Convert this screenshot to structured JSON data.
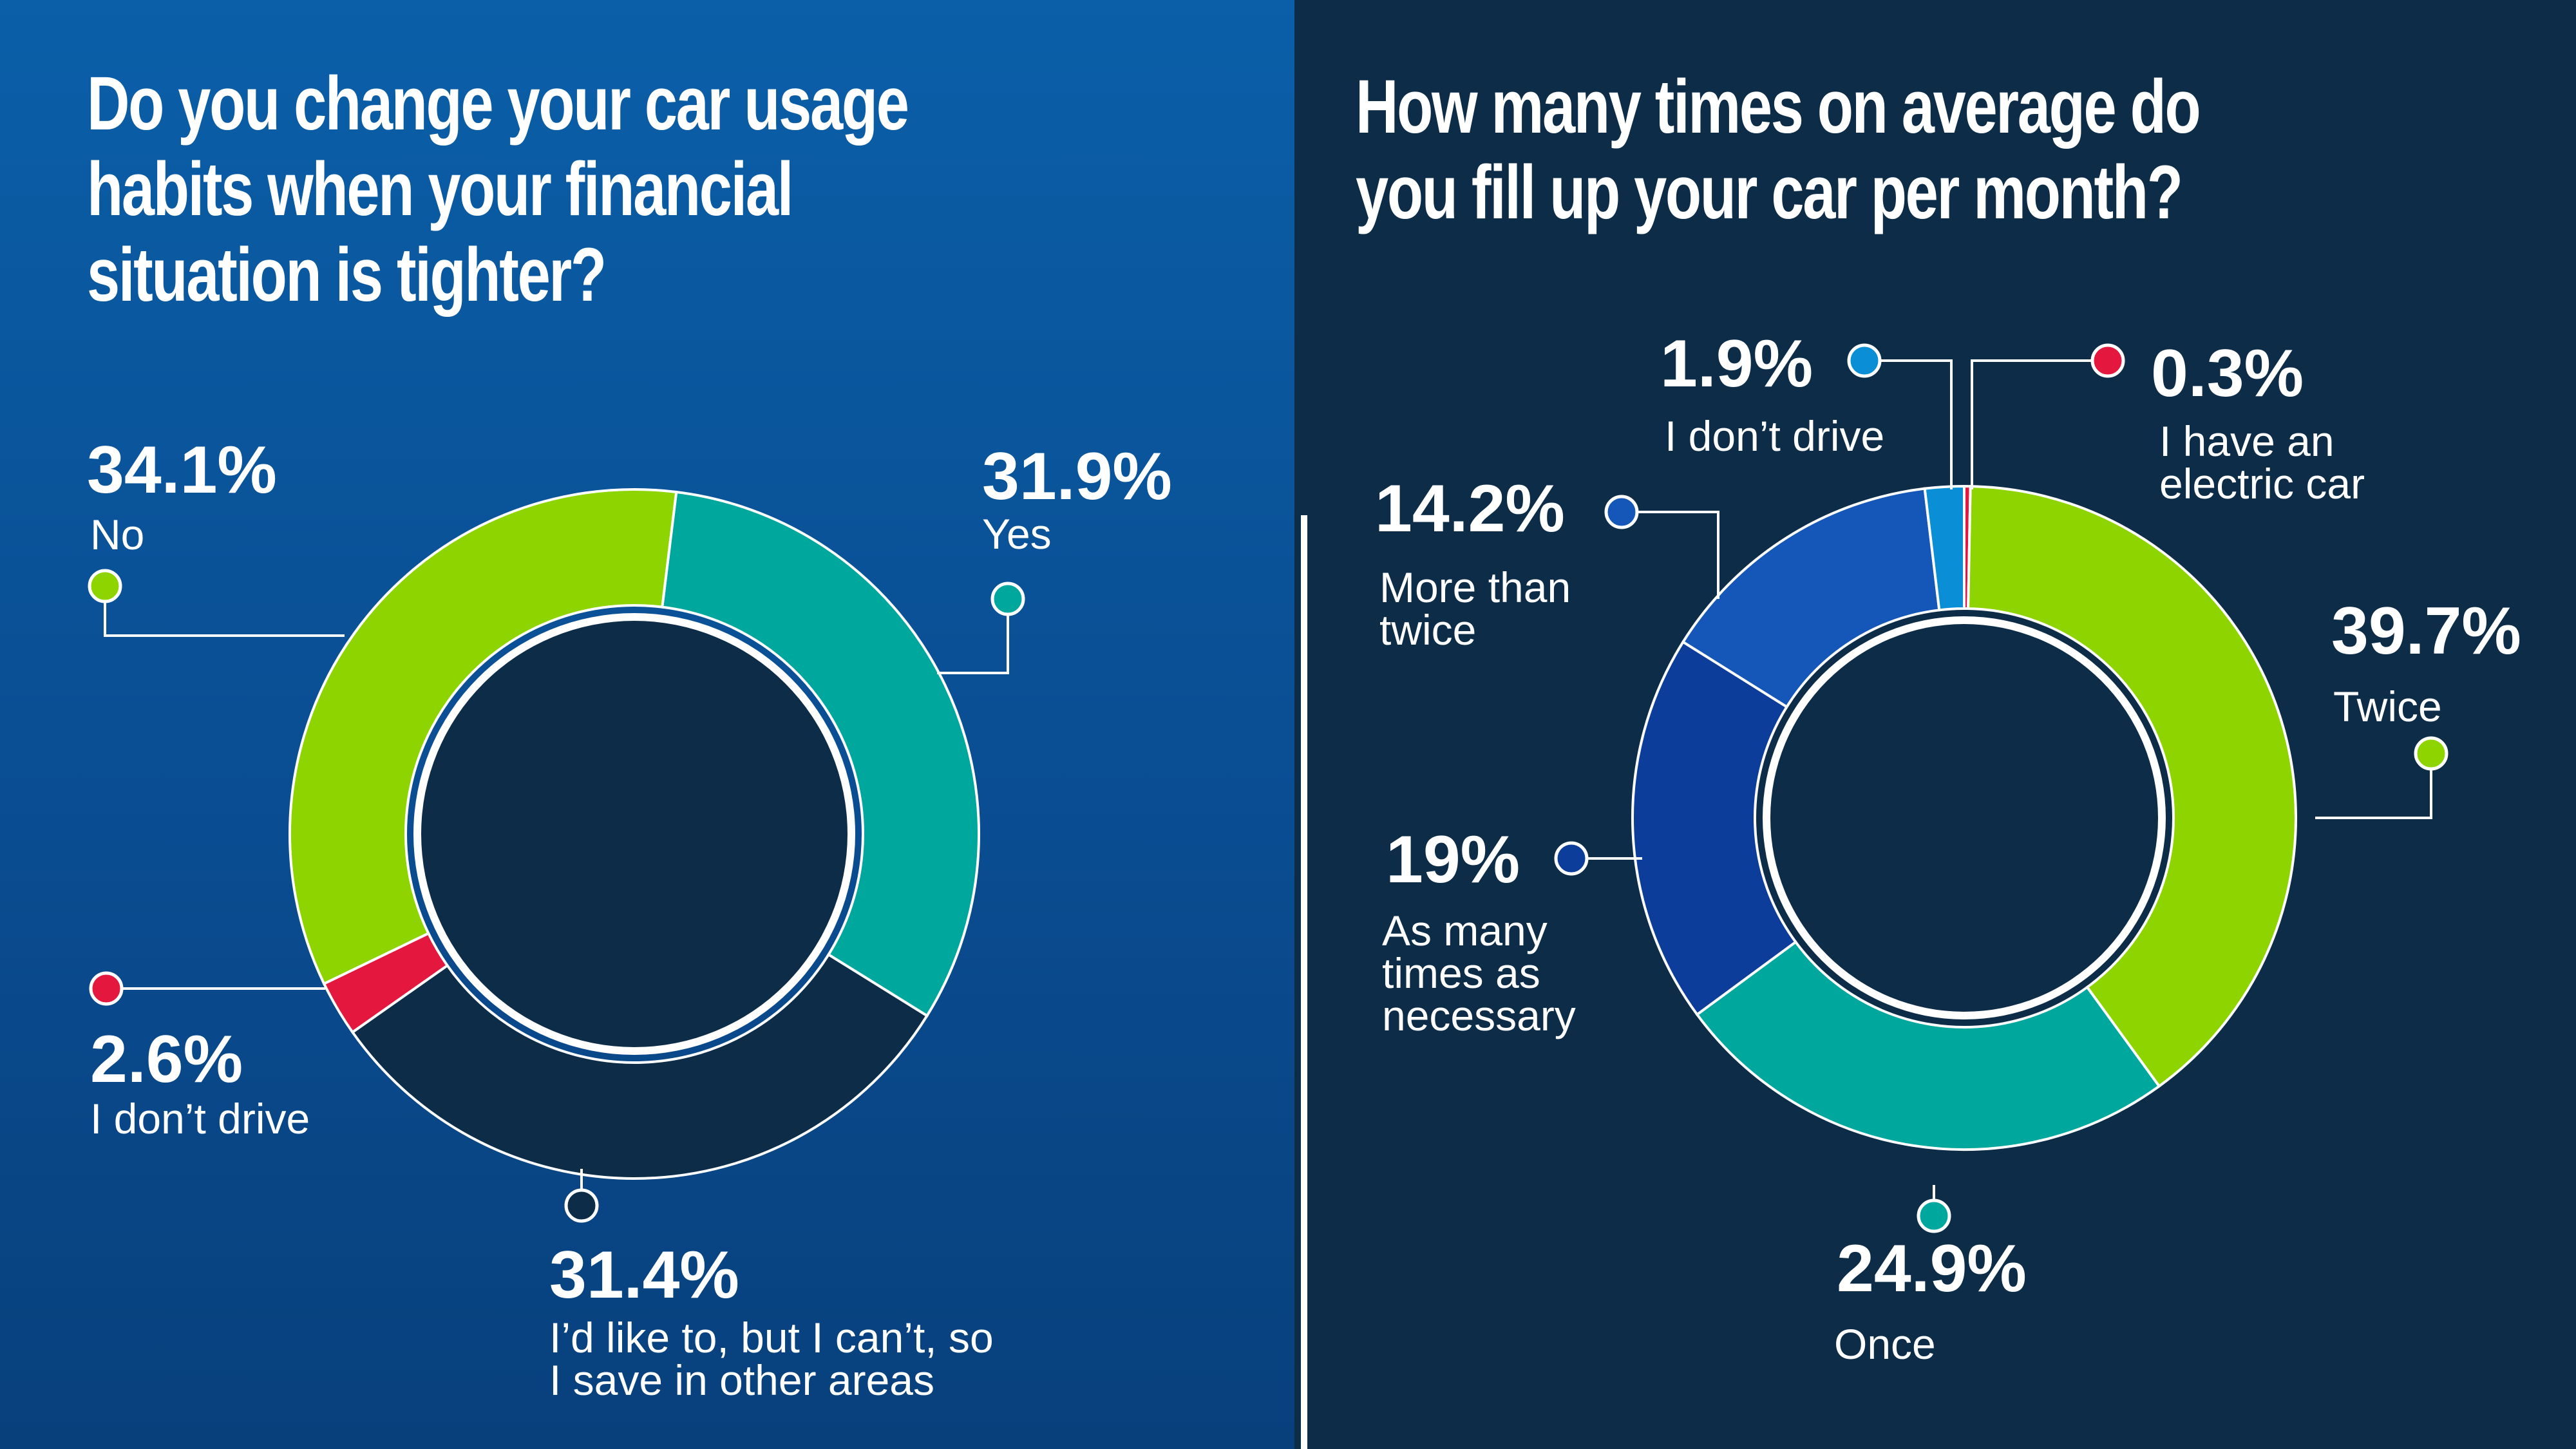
{
  "left": {
    "title_lines": [
      "Do you change your car usage",
      "habits when your financial",
      "situation is tighter?"
    ]
  },
  "right": {
    "title_lines": [
      "How many times on average do",
      "you fill up your car per month?"
    ]
  },
  "chart_data": [
    {
      "type": "pie",
      "title": "Do you change your car usage habits when your financial situation is tighter?",
      "donut": true,
      "slices": [
        {
          "label": "Yes",
          "value": 31.9,
          "value_label": "31.9%",
          "label_lines": [
            "Yes"
          ],
          "color": "#00a79d"
        },
        {
          "label": "I’d like to, but I can’t, so I save in other areas",
          "value": 31.4,
          "value_label": "31.4%",
          "label_lines": [
            "I’d like to, but I can’t, so",
            "I save in other areas"
          ],
          "color": "#0c2c48"
        },
        {
          "label": "I don’t drive",
          "value": 2.6,
          "value_label": "2.6%",
          "label_lines": [
            "I don’t drive"
          ],
          "color": "#e4173f"
        },
        {
          "label": "No",
          "value": 34.1,
          "value_label": "34.1%",
          "label_lines": [
            "No"
          ],
          "color": "#8ed400"
        }
      ]
    },
    {
      "type": "pie",
      "title": "How many times on average do you fill up your car per month?",
      "donut": true,
      "slices": [
        {
          "label": "I have an electric car",
          "value": 0.3,
          "value_label": "0.3%",
          "label_lines": [
            "I have an",
            "electric car"
          ],
          "color": "#e4173f"
        },
        {
          "label": "Twice",
          "value": 39.7,
          "value_label": "39.7%",
          "label_lines": [
            "Twice"
          ],
          "color": "#8ed400"
        },
        {
          "label": "Once",
          "value": 24.9,
          "value_label": "24.9%",
          "label_lines": [
            "Once"
          ],
          "color": "#00a79d"
        },
        {
          "label": "As many times as necessary",
          "value": 19,
          "value_label": "19%",
          "label_lines": [
            "As many",
            "times as",
            "necessary"
          ],
          "color": "#0d3d9a"
        },
        {
          "label": "More than twice",
          "value": 14.2,
          "value_label": "14.2%",
          "label_lines": [
            "More than",
            "twice"
          ],
          "color": "#1557b8"
        },
        {
          "label": "I don’t drive",
          "value": 1.9,
          "value_label": "1.9%",
          "label_lines": [
            "I don’t drive"
          ],
          "color": "#0a8fd6"
        }
      ]
    }
  ]
}
